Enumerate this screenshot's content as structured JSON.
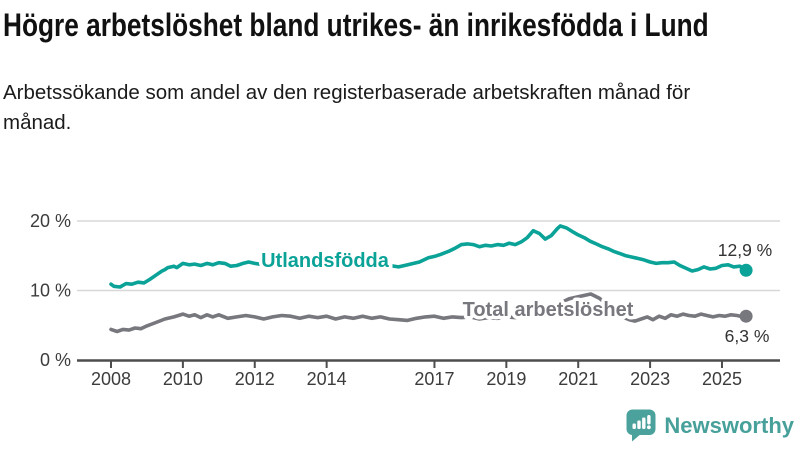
{
  "header": {
    "title": "Högre arbetslöshet bland utrikes- än inrikesfödda i Lund",
    "subtitle": "Arbetssökande som andel av den registerbaserade arbetskraften månad för månad."
  },
  "chart_data": {
    "type": "line",
    "unit": "%",
    "x_range": [
      2008.0,
      2025.67
    ],
    "y_range": [
      0,
      21
    ],
    "grid": "horizontal",
    "y_ticks": [
      {
        "value": 0,
        "label": "0 %"
      },
      {
        "value": 10,
        "label": "10 %"
      },
      {
        "value": 20,
        "label": "20 %"
      }
    ],
    "x_ticks": [
      {
        "value": 2008,
        "label": "2008"
      },
      {
        "value": 2010,
        "label": "2010"
      },
      {
        "value": 2012,
        "label": "2012"
      },
      {
        "value": 2014,
        "label": "2014"
      },
      {
        "value": 2017,
        "label": "2017"
      },
      {
        "value": 2019,
        "label": "2019"
      },
      {
        "value": 2021,
        "label": "2021"
      },
      {
        "value": 2023,
        "label": "2023"
      },
      {
        "value": 2025,
        "label": "2025"
      }
    ],
    "series": [
      {
        "name": "Utlandsfödda",
        "color": "#0ba298",
        "end_value": 12.9,
        "end_label": "12,9 %",
        "points": [
          [
            2008.0,
            10.9
          ],
          [
            2008.08,
            10.6
          ],
          [
            2008.25,
            10.5
          ],
          [
            2008.42,
            11.0
          ],
          [
            2008.58,
            10.9
          ],
          [
            2008.75,
            11.2
          ],
          [
            2008.92,
            11.1
          ],
          [
            2009.08,
            11.6
          ],
          [
            2009.25,
            12.2
          ],
          [
            2009.42,
            12.8
          ],
          [
            2009.5,
            13.0
          ],
          [
            2009.58,
            13.3
          ],
          [
            2009.75,
            13.5
          ],
          [
            2009.83,
            13.3
          ],
          [
            2010.0,
            13.9
          ],
          [
            2010.17,
            13.7
          ],
          [
            2010.33,
            13.8
          ],
          [
            2010.5,
            13.6
          ],
          [
            2010.67,
            13.9
          ],
          [
            2010.83,
            13.7
          ],
          [
            2011.0,
            14.0
          ],
          [
            2011.17,
            13.9
          ],
          [
            2011.33,
            13.5
          ],
          [
            2011.5,
            13.6
          ],
          [
            2011.67,
            13.9
          ],
          [
            2011.83,
            14.1
          ],
          [
            2012.0,
            13.9
          ],
          [
            2012.25,
            13.7
          ],
          [
            2012.5,
            13.9
          ],
          [
            2012.75,
            14.1
          ],
          [
            2013.0,
            14.0
          ],
          [
            2013.25,
            13.8
          ],
          [
            2013.5,
            14.0
          ],
          [
            2013.75,
            14.2
          ],
          [
            2014.0,
            14.0
          ],
          [
            2014.25,
            13.8
          ],
          [
            2014.5,
            13.9
          ],
          [
            2014.75,
            14.1
          ],
          [
            2015.0,
            13.9
          ],
          [
            2015.25,
            13.6
          ],
          [
            2015.5,
            13.8
          ],
          [
            2015.75,
            13.6
          ],
          [
            2016.0,
            13.4
          ],
          [
            2016.17,
            13.6
          ],
          [
            2016.33,
            13.8
          ],
          [
            2016.58,
            14.1
          ],
          [
            2016.83,
            14.7
          ],
          [
            2017.0,
            14.9
          ],
          [
            2017.17,
            15.2
          ],
          [
            2017.42,
            15.7
          ],
          [
            2017.58,
            16.1
          ],
          [
            2017.75,
            16.6
          ],
          [
            2017.92,
            16.7
          ],
          [
            2018.08,
            16.6
          ],
          [
            2018.25,
            16.3
          ],
          [
            2018.42,
            16.5
          ],
          [
            2018.58,
            16.4
          ],
          [
            2018.75,
            16.6
          ],
          [
            2018.92,
            16.5
          ],
          [
            2019.08,
            16.8
          ],
          [
            2019.25,
            16.6
          ],
          [
            2019.42,
            17.0
          ],
          [
            2019.58,
            17.6
          ],
          [
            2019.75,
            18.6
          ],
          [
            2019.92,
            18.2
          ],
          [
            2020.08,
            17.4
          ],
          [
            2020.25,
            17.9
          ],
          [
            2020.42,
            18.9
          ],
          [
            2020.5,
            19.3
          ],
          [
            2020.67,
            19.0
          ],
          [
            2020.83,
            18.5
          ],
          [
            2021.0,
            18.0
          ],
          [
            2021.17,
            17.6
          ],
          [
            2021.33,
            17.1
          ],
          [
            2021.5,
            16.7
          ],
          [
            2021.67,
            16.3
          ],
          [
            2021.83,
            16.0
          ],
          [
            2022.0,
            15.6
          ],
          [
            2022.17,
            15.3
          ],
          [
            2022.33,
            15.0
          ],
          [
            2022.5,
            14.8
          ],
          [
            2022.67,
            14.6
          ],
          [
            2022.83,
            14.4
          ],
          [
            2023.0,
            14.1
          ],
          [
            2023.17,
            13.9
          ],
          [
            2023.33,
            14.0
          ],
          [
            2023.5,
            14.0
          ],
          [
            2023.67,
            14.1
          ],
          [
            2023.83,
            13.6
          ],
          [
            2024.0,
            13.2
          ],
          [
            2024.17,
            12.8
          ],
          [
            2024.33,
            13.0
          ],
          [
            2024.5,
            13.4
          ],
          [
            2024.67,
            13.1
          ],
          [
            2024.83,
            13.2
          ],
          [
            2025.0,
            13.6
          ],
          [
            2025.17,
            13.7
          ],
          [
            2025.33,
            13.4
          ],
          [
            2025.5,
            13.5
          ],
          [
            2025.58,
            13.3
          ],
          [
            2025.67,
            12.9
          ]
        ]
      },
      {
        "name": "Total arbetslöshet",
        "color": "#77777e",
        "end_value": 6.3,
        "end_label": "6,3 %",
        "points": [
          [
            2008.0,
            4.4
          ],
          [
            2008.17,
            4.1
          ],
          [
            2008.33,
            4.4
          ],
          [
            2008.5,
            4.3
          ],
          [
            2008.67,
            4.6
          ],
          [
            2008.83,
            4.5
          ],
          [
            2009.0,
            4.9
          ],
          [
            2009.25,
            5.4
          ],
          [
            2009.5,
            5.9
          ],
          [
            2009.75,
            6.2
          ],
          [
            2010.0,
            6.6
          ],
          [
            2010.17,
            6.3
          ],
          [
            2010.33,
            6.5
          ],
          [
            2010.5,
            6.1
          ],
          [
            2010.67,
            6.5
          ],
          [
            2010.83,
            6.2
          ],
          [
            2011.0,
            6.5
          ],
          [
            2011.25,
            6.0
          ],
          [
            2011.5,
            6.2
          ],
          [
            2011.75,
            6.4
          ],
          [
            2012.0,
            6.2
          ],
          [
            2012.25,
            5.9
          ],
          [
            2012.5,
            6.2
          ],
          [
            2012.75,
            6.4
          ],
          [
            2013.0,
            6.3
          ],
          [
            2013.25,
            6.0
          ],
          [
            2013.5,
            6.3
          ],
          [
            2013.75,
            6.1
          ],
          [
            2014.0,
            6.3
          ],
          [
            2014.25,
            5.9
          ],
          [
            2014.5,
            6.2
          ],
          [
            2014.75,
            6.0
          ],
          [
            2015.0,
            6.3
          ],
          [
            2015.25,
            6.0
          ],
          [
            2015.5,
            6.2
          ],
          [
            2015.75,
            5.9
          ],
          [
            2016.0,
            5.8
          ],
          [
            2016.25,
            5.7
          ],
          [
            2016.5,
            6.0
          ],
          [
            2016.75,
            6.2
          ],
          [
            2017.0,
            6.3
          ],
          [
            2017.25,
            6.0
          ],
          [
            2017.5,
            6.2
          ],
          [
            2017.75,
            6.1
          ],
          [
            2018.0,
            6.2
          ],
          [
            2018.25,
            5.9
          ],
          [
            2018.5,
            6.1
          ],
          [
            2018.75,
            6.0
          ],
          [
            2019.0,
            6.2
          ],
          [
            2019.25,
            6.1
          ],
          [
            2019.5,
            6.3
          ],
          [
            2019.75,
            6.5
          ],
          [
            2020.0,
            6.6
          ],
          [
            2020.25,
            7.2
          ],
          [
            2020.5,
            8.2
          ],
          [
            2020.75,
            8.8
          ],
          [
            2021.0,
            9.1
          ],
          [
            2021.35,
            9.5
          ],
          [
            2021.58,
            8.9
          ],
          [
            2021.83,
            7.9
          ],
          [
            2022.08,
            6.8
          ],
          [
            2022.33,
            6.0
          ],
          [
            2022.42,
            5.8
          ],
          [
            2022.58,
            5.6
          ],
          [
            2022.75,
            5.9
          ],
          [
            2022.92,
            6.2
          ],
          [
            2023.08,
            5.8
          ],
          [
            2023.25,
            6.3
          ],
          [
            2023.42,
            6.0
          ],
          [
            2023.58,
            6.5
          ],
          [
            2023.75,
            6.3
          ],
          [
            2023.92,
            6.6
          ],
          [
            2024.08,
            6.4
          ],
          [
            2024.25,
            6.3
          ],
          [
            2024.42,
            6.6
          ],
          [
            2024.58,
            6.4
          ],
          [
            2024.75,
            6.2
          ],
          [
            2024.92,
            6.4
          ],
          [
            2025.08,
            6.3
          ],
          [
            2025.25,
            6.5
          ],
          [
            2025.42,
            6.4
          ],
          [
            2025.58,
            6.2
          ],
          [
            2025.67,
            6.3
          ]
        ]
      }
    ]
  },
  "footer": {
    "brand": "Newsworthy",
    "brand_color": "#47a09a"
  }
}
